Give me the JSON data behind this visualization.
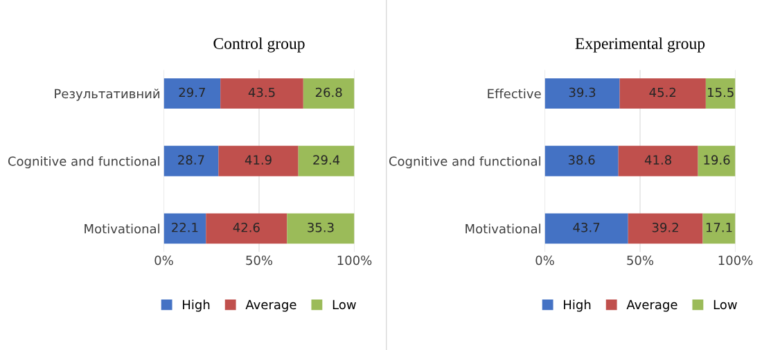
{
  "chart_data": [
    {
      "type": "bar",
      "title": "Control group",
      "orientation": "horizontal",
      "stacked": true,
      "categories": [
        "Результативний",
        "Cognitive and functional",
        "Motivational"
      ],
      "series": [
        {
          "name": "High",
          "color": "#4472c4",
          "values": [
            29.7,
            28.7,
            22.1
          ]
        },
        {
          "name": "Average",
          "color": "#c0504d",
          "values": [
            43.5,
            41.9,
            42.6
          ]
        },
        {
          "name": "Low",
          "color": "#9bbb59",
          "values": [
            26.8,
            29.4,
            35.3
          ]
        }
      ],
      "xlim": [
        0,
        100
      ],
      "xticks": [
        {
          "value": 0,
          "label": "0%"
        },
        {
          "value": 50,
          "label": "50%"
        },
        {
          "value": 100,
          "label": "100%"
        }
      ],
      "grid": "x",
      "legend": "bottom",
      "data_labels": true
    },
    {
      "type": "bar",
      "title": "Experimental group",
      "orientation": "horizontal",
      "stacked": true,
      "categories": [
        "Effective",
        "Cognitive and functional",
        "Motivational"
      ],
      "series": [
        {
          "name": "High",
          "color": "#4472c4",
          "values": [
            39.3,
            38.6,
            43.7
          ]
        },
        {
          "name": "Average",
          "color": "#c0504d",
          "values": [
            45.2,
            41.8,
            39.2
          ]
        },
        {
          "name": "Low",
          "color": "#9bbb59",
          "values": [
            15.5,
            19.6,
            17.1
          ]
        }
      ],
      "xlim": [
        0,
        100
      ],
      "xticks": [
        {
          "value": 0,
          "label": "0%"
        },
        {
          "value": 50,
          "label": "50%"
        },
        {
          "value": 100,
          "label": "100%"
        }
      ],
      "grid": "x",
      "legend": "bottom",
      "data_labels": true
    }
  ]
}
